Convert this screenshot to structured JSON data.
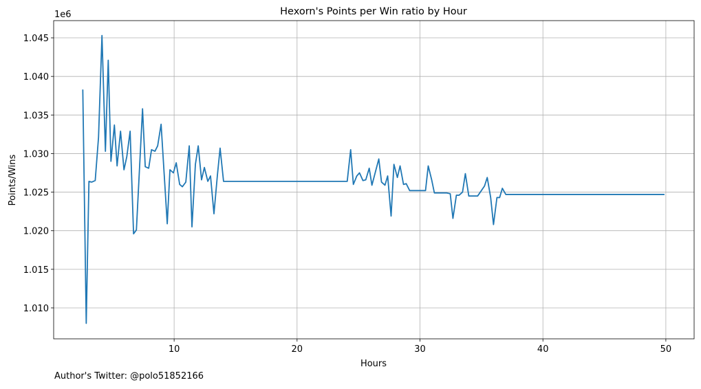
{
  "chart_data": {
    "type": "line",
    "title": "Hexorn's Points per Win ratio by Hour",
    "x_label": "Hours",
    "y_label": "Points/Wins",
    "y_offset_label": "1e6",
    "footer": "Author's Twitter: @polo51852166",
    "color": "#1f77b4",
    "grid": true,
    "xlim": [
      0.2,
      52.3
    ],
    "xticks": [
      10,
      20,
      30,
      40,
      50
    ],
    "ylim": [
      1005990,
      1047230
    ],
    "yticks": [
      {
        "value": 1010000,
        "label": "1.010"
      },
      {
        "value": 1015000,
        "label": "1.015"
      },
      {
        "value": 1020000,
        "label": "1.020"
      },
      {
        "value": 1025000,
        "label": "1.025"
      },
      {
        "value": 1030000,
        "label": "1.030"
      },
      {
        "value": 1035000,
        "label": "1.035"
      },
      {
        "value": 1040000,
        "label": "1.040"
      },
      {
        "value": 1045000,
        "label": "1.045"
      }
    ],
    "x": [
      2.57,
      2.85,
      3.07,
      3.3,
      3.58,
      3.85,
      4.13,
      4.41,
      4.64,
      4.86,
      5.14,
      5.36,
      5.64,
      5.92,
      6.15,
      6.42,
      6.7,
      6.93,
      7.43,
      7.65,
      7.93,
      8.16,
      8.44,
      8.66,
      8.94,
      9.44,
      9.66,
      9.94,
      10.17,
      10.45,
      10.67,
      10.95,
      11.23,
      11.45,
      11.73,
      11.96,
      12.23,
      12.46,
      12.74,
      12.96,
      13.24,
      13.52,
      13.74,
      14.02,
      24.08,
      24.36,
      24.58,
      24.86,
      25.08,
      25.36,
      25.59,
      25.87,
      26.09,
      26.37,
      26.65,
      26.87,
      27.15,
      27.37,
      27.65,
      27.88,
      28.16,
      28.38,
      28.66,
      28.88,
      29.16,
      30.45,
      30.67,
      30.95,
      31.17,
      32.18,
      32.46,
      32.68,
      32.96,
      33.18,
      33.46,
      33.69,
      33.97,
      34.69,
      35.25,
      35.47,
      35.75,
      35.98,
      36.26,
      36.48,
      36.7,
      36.98,
      49.89
    ],
    "values": [
      1038300,
      1008000,
      1026400,
      1026300,
      1026500,
      1032100,
      1045300,
      1030300,
      1042100,
      1029000,
      1033700,
      1028400,
      1032900,
      1027900,
      1029600,
      1032900,
      1019600,
      1020100,
      1035800,
      1028300,
      1028100,
      1030500,
      1030300,
      1031000,
      1033800,
      1020900,
      1027900,
      1027500,
      1028800,
      1026000,
      1025700,
      1026300,
      1031000,
      1020500,
      1028600,
      1031000,
      1026600,
      1028200,
      1026400,
      1027100,
      1022200,
      1027200,
      1030700,
      1026400,
      1026400,
      1030500,
      1026000,
      1027100,
      1027500,
      1026500,
      1026600,
      1028100,
      1025900,
      1027600,
      1029300,
      1026300,
      1025900,
      1027100,
      1021900,
      1028600,
      1026900,
      1028400,
      1026000,
      1026100,
      1025200,
      1025200,
      1028400,
      1026600,
      1024900,
      1024900,
      1024800,
      1021600,
      1024600,
      1024600,
      1025000,
      1027400,
      1024500,
      1024500,
      1025800,
      1026900,
      1024300,
      1020800,
      1024300,
      1024300,
      1025500,
      1024700,
      1024700
    ]
  }
}
